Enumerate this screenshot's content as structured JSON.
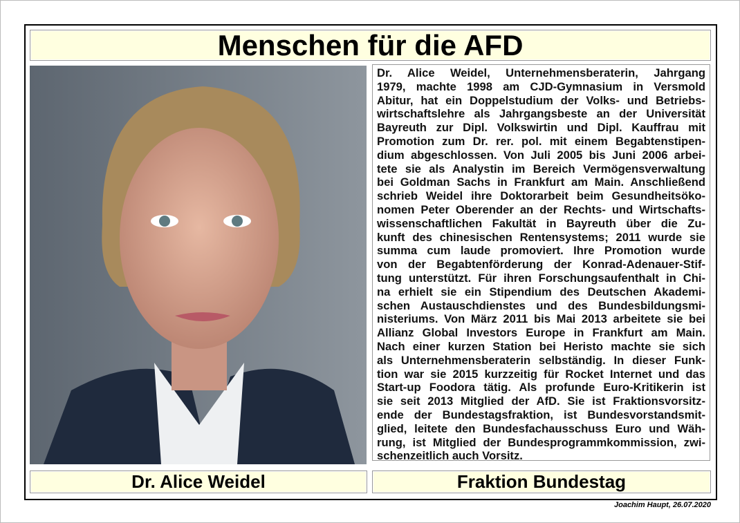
{
  "title": "Menschen für die AFD",
  "photo": {
    "subject": "portrait-photo"
  },
  "bio_lines": [
    "Dr. Alice Weidel, Unternehmensberaterin, Jahrgang",
    "1979, machte 1998 am CJD-Gymnasium in Versmold",
    "Abitur, hat ein Doppelstudium der Volks- und Betriebs-",
    "wirtschaftslehre als Jahrgangsbeste an der Universität",
    "Bayreuth zur Dipl. Volkswirtin und Dipl. Kauffrau mit",
    "Promotion zum Dr. rer. pol. mit einem Begabtenstipen-",
    "dium abgeschlossen. Von Juli 2005 bis Juni 2006 arbei-",
    "tete sie als Analystin im Bereich Vermögensverwaltung",
    "bei Goldman Sachs in Frankfurt am Main. Anschließend",
    "schrieb Weidel ihre Doktorarbeit beim Gesundheitsöko-",
    "nomen Peter Oberender an der Rechts- und Wirtschafts-",
    "wissenschaftlichen Fakultät in Bayreuth über die Zu-",
    "kunft des chinesischen Rentensystems; 2011 wurde sie",
    "summa cum laude promoviert. Ihre Promotion wurde",
    "von der Begabtenförderung der Konrad-Adenauer-Stif-",
    "tung unterstützt. Für ihren Forschungsaufenthalt in Chi-",
    "na erhielt sie ein Stipendium des Deutschen Akademi-",
    "schen Austauschdienstes und des Bundesbildungsmi-",
    "nisteriums. Von März 2011 bis Mai 2013 arbeitete sie bei",
    "Allianz Global Investors Europe in Frankfurt am Main.",
    "Nach einer kurzen Station bei Heristo machte sie sich",
    "als Unternehmensberaterin selbständig. In dieser Funk-",
    "tion war sie 2015 kurzzeitig für Rocket Internet und das",
    "Start-up Foodora tätig. Als profunde Euro-Kritikerin ist",
    "sie seit 2013 Mitglied der AfD. Sie ist Fraktionsvorsitz-",
    "ende der Bundestagsfraktion, ist Bundesvorstandsmit-",
    "glied, leitete den Bundesfachausschuss Euro und Wäh-",
    "rung, ist Mitglied der Bundesprogrammkommission, zwi-",
    "schenzeitlich auch Vorsitz."
  ],
  "name": "Dr. Alice Weidel",
  "fraktion": "Fraktion Bundestag",
  "footer": "Joachim Haupt, 26.07.2020",
  "colors": {
    "box_fill": "#ffffe0",
    "border": "#000000"
  }
}
